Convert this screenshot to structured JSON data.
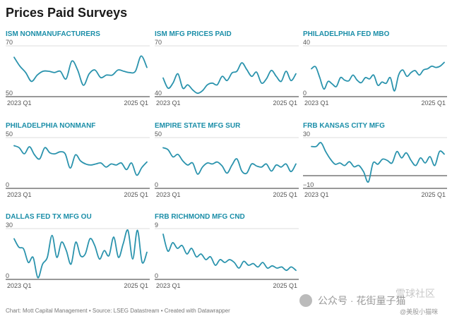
{
  "title": "Prices Paid Surveys",
  "footer": "Chart: Mott Capital Management • Source: LSEG Datastream • Created with Datawrapper",
  "watermark": {
    "account": "公众号 · 花街量子猫",
    "community": "雪球社区",
    "handle": "@美股小猫咪"
  },
  "colors": {
    "line": "#2a93ad",
    "title": "#1b8ea8"
  },
  "chart_data": [
    {
      "type": "line",
      "title": "ISM NONMANUFACTURERS",
      "ylim": [
        50,
        70
      ],
      "ticks": [
        "70",
        "50"
      ],
      "xticks": [
        "2023 Q1",
        "2025 Q1"
      ],
      "values": [
        65.5,
        62,
        59.5,
        56,
        58.5,
        60,
        60,
        59.5,
        60,
        57,
        64,
        60.5,
        54.5,
        59,
        60.5,
        57.5,
        58.5,
        58.5,
        60.5,
        60,
        59.5,
        60,
        66,
        61.5
      ]
    },
    {
      "type": "line",
      "title": "ISM MFG PRICES PAID",
      "ylim": [
        40,
        70
      ],
      "ticks": [
        "70",
        "40"
      ],
      "xticks": [
        "2023 Q1",
        "2025 Q1"
      ],
      "values": [
        51,
        45,
        48,
        53.5,
        45,
        47,
        44,
        42,
        43.5,
        47,
        48,
        47,
        52,
        49.5,
        54,
        55,
        60,
        56,
        52,
        54.5,
        48,
        50.5,
        55.5,
        52,
        49,
        55,
        49.5,
        53.5
      ]
    },
    {
      "type": "line",
      "title": "PHILADELPHIA FED MBO",
      "ylim": [
        0,
        40
      ],
      "ticks": [
        "40",
        "0"
      ],
      "xticks": [
        "2023 Q1",
        "2025 Q1"
      ],
      "values": [
        22,
        23.5,
        15,
        6,
        12,
        10,
        8,
        15,
        13,
        12.5,
        17,
        13,
        11,
        15,
        14,
        17,
        9,
        11.5,
        10.5,
        15,
        4.5,
        17,
        21,
        16,
        19,
        20.5,
        17,
        21,
        22,
        24,
        23,
        24,
        27
      ]
    },
    {
      "type": "line",
      "title": "PHILADELPHIA NONMANF",
      "ylim": [
        0,
        50
      ],
      "ticks": [
        "50",
        "0"
      ],
      "xticks": [
        "2023 Q1",
        "2025 Q1"
      ],
      "values": [
        42,
        40,
        34,
        41,
        33,
        29,
        40,
        35,
        34,
        36,
        34,
        20,
        33,
        27,
        24,
        23,
        24,
        25,
        21,
        24,
        23,
        25,
        18.5,
        25,
        13,
        20.5,
        26
      ]
    },
    {
      "type": "line",
      "title": "EMPIRE STATE MFG SUR",
      "ylim": [
        0,
        50
      ],
      "ticks": [
        "50",
        "0"
      ],
      "xticks": [
        "2023 Q1",
        "2025 Q1"
      ],
      "values": [
        40,
        38,
        31,
        33.5,
        27,
        23,
        25,
        14,
        21,
        25,
        24,
        26,
        22,
        15,
        23,
        29,
        17,
        15,
        24,
        22,
        21,
        24,
        17,
        23,
        21,
        24,
        16.5,
        24
      ]
    },
    {
      "type": "line",
      "title": "FRB KANSAS CITY MFG",
      "ylim": [
        -10,
        30
      ],
      "ticks": [
        "30",
        "−10"
      ],
      "xticks": [
        "2023 Q1",
        "2025 Q1"
      ],
      "zero_line": 0,
      "values": [
        23,
        23,
        26,
        19,
        13,
        9,
        10,
        8,
        11,
        7,
        8,
        3,
        -5,
        10,
        9,
        13,
        12,
        10,
        19,
        14,
        18,
        12,
        8,
        14,
        10,
        15,
        8,
        19,
        17
      ]
    },
    {
      "type": "line",
      "title": "DALLAS FED TX MFG OU",
      "ylim": [
        0,
        30
      ],
      "ticks": [
        "30",
        "0"
      ],
      "xticks": [
        "2023 Q1",
        "2025 Q1"
      ],
      "values": [
        24,
        19,
        18,
        10,
        13,
        1,
        9,
        13,
        26,
        13,
        22,
        17,
        9,
        22,
        14,
        15,
        24,
        20,
        12,
        17,
        14,
        25,
        13,
        21,
        29,
        12,
        29,
        10,
        16
      ]
    },
    {
      "type": "line",
      "title": "FRB RICHMOND MFG CND",
      "ylim": [
        0,
        9
      ],
      "ticks": [
        "9",
        "0"
      ],
      "xticks": [
        "2023 Q1",
        "2025 Q1"
      ],
      "values": [
        8,
        5,
        6.5,
        5.5,
        6,
        4.5,
        5.5,
        4,
        4.5,
        3.5,
        4,
        2.5,
        3.5,
        3,
        3.5,
        3,
        2,
        3.2,
        2.5,
        2.8,
        2.2,
        3,
        2,
        2.4,
        2,
        2.2,
        1.6,
        2.2,
        1.6
      ]
    }
  ]
}
